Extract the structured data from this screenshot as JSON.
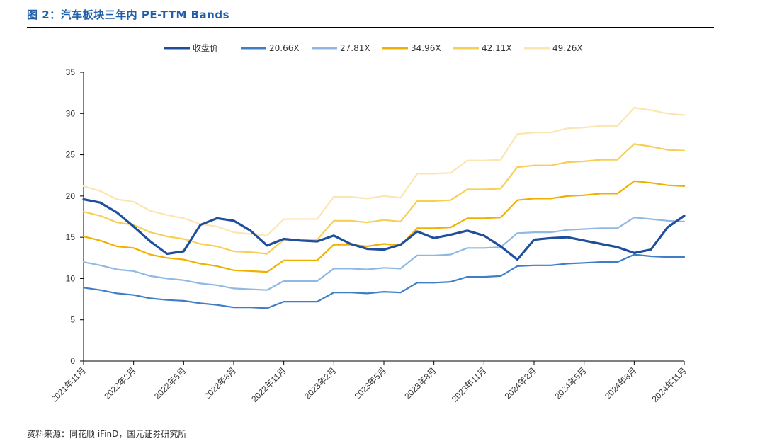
{
  "figure": {
    "title": "图 2：汽车板块三年内 PE-TTM Bands",
    "source": "资料来源：同花顺 iFinD，国元证券研究所"
  },
  "chart_data": {
    "type": "line",
    "ylim": [
      0,
      35
    ],
    "yticks": [
      0,
      5,
      10,
      15,
      20,
      25,
      30,
      35
    ],
    "xticks": [
      "2021年11月",
      "2022年2月",
      "2022年5月",
      "2022年8月",
      "2022年11月",
      "2023年2月",
      "2023年5月",
      "2023年8月",
      "2023年11月",
      "2024年2月",
      "2024年5月",
      "2024年8月",
      "2024年11月"
    ],
    "grid": false,
    "legend_position": "top",
    "x": [
      "2021-11",
      "2021-12",
      "2022-01",
      "2022-02",
      "2022-03",
      "2022-04",
      "2022-05",
      "2022-06",
      "2022-07",
      "2022-08",
      "2022-09",
      "2022-10",
      "2022-11",
      "2022-12",
      "2023-01",
      "2023-02",
      "2023-03",
      "2023-04",
      "2023-05",
      "2023-06",
      "2023-07",
      "2023-08",
      "2023-09",
      "2023-10",
      "2023-11",
      "2023-12",
      "2024-01",
      "2024-02",
      "2024-03",
      "2024-04",
      "2024-05",
      "2024-06",
      "2024-07",
      "2024-08",
      "2024-09",
      "2024-10",
      "2024-11"
    ],
    "series": [
      {
        "name": "收盘价",
        "color": "#1f4e9c",
        "width": 3.2,
        "values": [
          19.6,
          19.2,
          18.0,
          16.3,
          14.5,
          13.0,
          13.3,
          16.5,
          17.3,
          17.0,
          15.8,
          14.0,
          14.8,
          14.6,
          14.5,
          15.2,
          14.2,
          13.6,
          13.5,
          14.1,
          15.7,
          14.9,
          15.3,
          15.8,
          15.2,
          13.9,
          12.3,
          14.7,
          14.9,
          15.0,
          14.6,
          14.2,
          13.8,
          13.1,
          13.5,
          16.2,
          17.6
        ]
      },
      {
        "name": "20.66X",
        "color": "#3f7ec6",
        "width": 2.2,
        "values": [
          8.9,
          8.6,
          8.2,
          8.0,
          7.6,
          7.4,
          7.3,
          7.0,
          6.8,
          6.5,
          6.5,
          6.4,
          7.2,
          7.2,
          7.2,
          8.3,
          8.3,
          8.2,
          8.4,
          8.3,
          9.5,
          9.5,
          9.6,
          10.2,
          10.2,
          10.3,
          11.5,
          11.6,
          11.6,
          11.8,
          11.9,
          12.0,
          12.0,
          12.9,
          12.7,
          12.6,
          12.6
        ]
      },
      {
        "name": "27.81X",
        "color": "#8fb9e3",
        "width": 2.2,
        "values": [
          12.0,
          11.6,
          11.1,
          10.9,
          10.3,
          10.0,
          9.8,
          9.4,
          9.2,
          8.8,
          8.7,
          8.6,
          9.7,
          9.7,
          9.7,
          11.2,
          11.2,
          11.1,
          11.3,
          11.2,
          12.8,
          12.8,
          12.9,
          13.7,
          13.7,
          13.8,
          15.5,
          15.6,
          15.6,
          15.9,
          16.0,
          16.1,
          16.1,
          17.4,
          17.2,
          17.0,
          16.9
        ]
      },
      {
        "name": "34.96X",
        "color": "#f0b000",
        "width": 2.2,
        "values": [
          15.1,
          14.6,
          13.9,
          13.7,
          12.9,
          12.5,
          12.3,
          11.8,
          11.5,
          11.0,
          10.9,
          10.8,
          12.2,
          12.2,
          12.2,
          14.1,
          14.1,
          13.9,
          14.2,
          14.0,
          16.1,
          16.1,
          16.2,
          17.3,
          17.3,
          17.4,
          19.5,
          19.7,
          19.7,
          20.0,
          20.1,
          20.3,
          20.3,
          21.8,
          21.6,
          21.3,
          21.2
        ]
      },
      {
        "name": "42.11X",
        "color": "#f7cf55",
        "width": 2.2,
        "values": [
          18.1,
          17.6,
          16.8,
          16.5,
          15.6,
          15.1,
          14.8,
          14.2,
          13.9,
          13.3,
          13.2,
          13.0,
          14.7,
          14.7,
          14.7,
          17.0,
          17.0,
          16.8,
          17.1,
          16.9,
          19.4,
          19.4,
          19.5,
          20.8,
          20.8,
          20.9,
          23.5,
          23.7,
          23.7,
          24.1,
          24.2,
          24.4,
          24.4,
          26.3,
          26.0,
          25.6,
          25.5
        ]
      },
      {
        "name": "49.26X",
        "color": "#fbe6b0",
        "width": 2.2,
        "values": [
          21.2,
          20.6,
          19.6,
          19.3,
          18.2,
          17.7,
          17.3,
          16.6,
          16.3,
          15.6,
          15.4,
          15.2,
          17.2,
          17.2,
          17.2,
          19.9,
          19.9,
          19.7,
          20.0,
          19.8,
          22.7,
          22.7,
          22.8,
          24.3,
          24.3,
          24.4,
          27.5,
          27.7,
          27.7,
          28.2,
          28.3,
          28.5,
          28.5,
          30.7,
          30.4,
          30.0,
          29.8
        ]
      }
    ]
  }
}
